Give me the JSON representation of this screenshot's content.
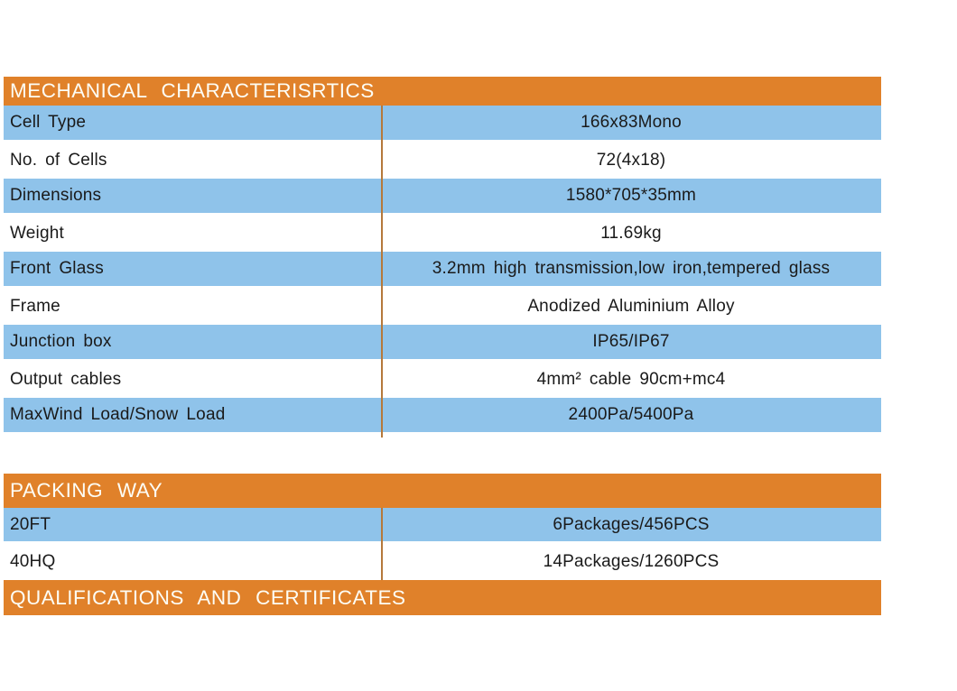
{
  "colors": {
    "header_bg": "#E0812A",
    "header_text": "#FDFDF5",
    "row_blue": "#8FC3EA",
    "row_white": "#FFFFFF",
    "row_text": "#1A1A1A",
    "divider_line": "#B5793B"
  },
  "tables": [
    {
      "title": "MECHANICAL CHARACTERISRTICS",
      "rows": [
        {
          "label": "Cell Type",
          "value": "166x83Mono"
        },
        {
          "label": "No. of Cells",
          "value": "72(4x18)"
        },
        {
          "label": "Dimensions",
          "value": "1580*705*35mm"
        },
        {
          "label": "Weight",
          "value": "11.69kg"
        },
        {
          "label": "Front Glass",
          "value": "3.2mm high transmission,low iron,tempered glass"
        },
        {
          "label": "Frame",
          "value": "Anodized Aluminium Alloy"
        },
        {
          "label": "Junction box",
          "value": "IP65/IP67"
        },
        {
          "label": "Output cables",
          "value": "4mm² cable 90cm+mc4"
        },
        {
          "label": "MaxWind Load/Snow Load",
          "value": "2400Pa/5400Pa"
        }
      ]
    },
    {
      "title": "PACKING WAY",
      "rows": [
        {
          "label": "20FT",
          "value": "6Packages/456PCS"
        },
        {
          "label": "40HQ",
          "value": "14Packages/1260PCS"
        }
      ]
    },
    {
      "title": "QUALIFICATIONS AND CERTIFICATES",
      "rows": []
    }
  ]
}
